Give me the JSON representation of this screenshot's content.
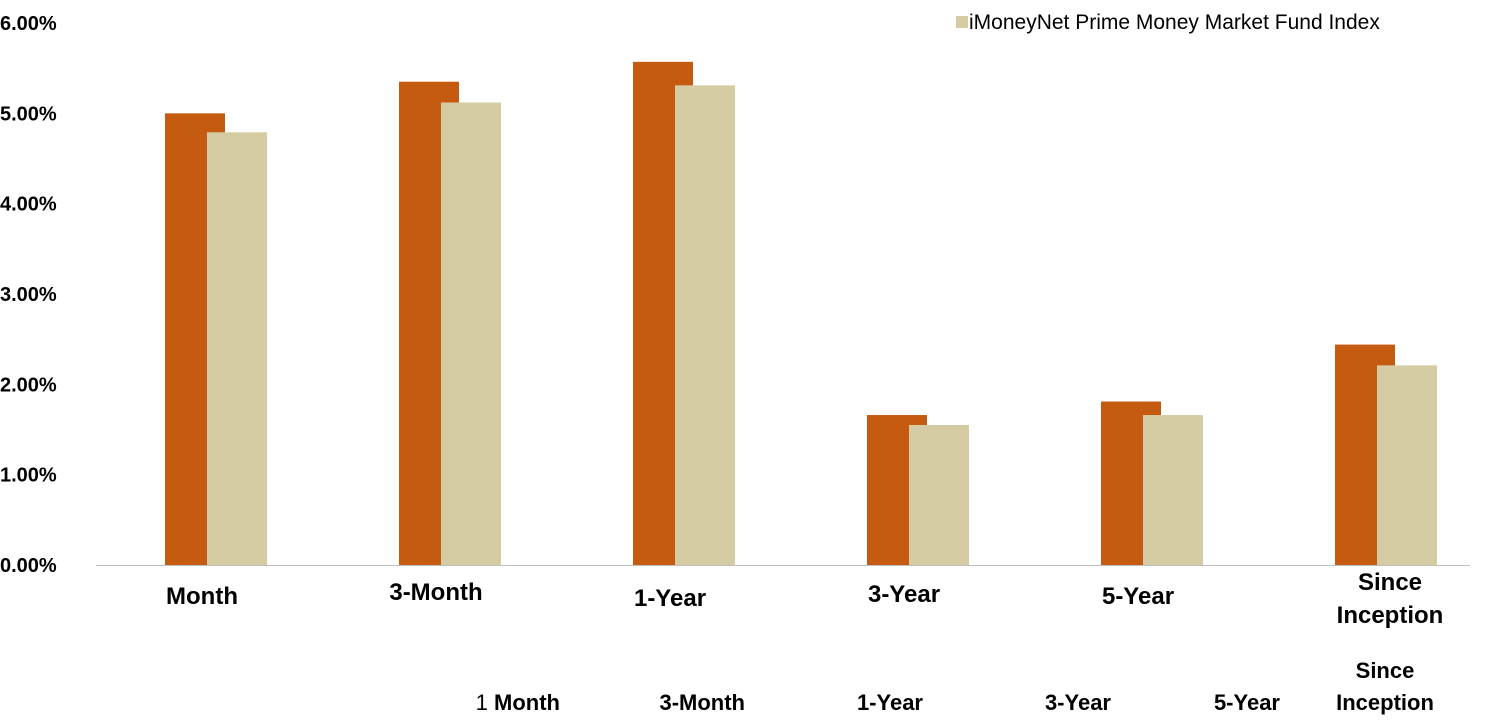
{
  "chart_data": {
    "type": "bar",
    "title": "",
    "xlabel": "",
    "ylabel": "",
    "ylim": [
      0,
      6
    ],
    "y_ticks": [
      "0.00%",
      "1.00%",
      "2.00%",
      "3.00%",
      "4.00%",
      "5.00%",
      "6.00%"
    ],
    "y_tick_values": [
      0,
      1,
      2,
      3,
      4,
      5,
      6
    ],
    "categories": [
      [
        "Month"
      ],
      [
        "3-Month"
      ],
      [
        "1-Year"
      ],
      [
        "3-Year"
      ],
      [
        "5-Year"
      ],
      [
        "Since",
        "Inception"
      ]
    ],
    "series": [
      {
        "name": "",
        "color": "#c55a11",
        "values": [
          5.0,
          5.35,
          5.57,
          1.66,
          1.81,
          2.44
        ]
      },
      {
        "name": "iMoneyNet Prime Money Market Fund Index",
        "color": "#d6cca3",
        "values": [
          4.79,
          5.12,
          5.31,
          1.55,
          1.66,
          2.21
        ]
      }
    ],
    "grid": false,
    "legend_position": "top-right"
  },
  "table_header": {
    "cells": [
      {
        "parts": [
          {
            "text": "1 ",
            "bold": false
          },
          {
            "text": "Month",
            "bold": true
          }
        ]
      },
      {
        "parts": [
          {
            "text": "3-Month",
            "bold": true
          }
        ]
      },
      {
        "parts": [
          {
            "text": "1-Year",
            "bold": true
          }
        ]
      },
      {
        "parts": [
          {
            "text": "3-Year",
            "bold": true
          }
        ]
      },
      {
        "parts": [
          {
            "text": "5-Year",
            "bold": true
          }
        ]
      },
      {
        "parts": [
          {
            "text": "Since",
            "bold": true
          }
        ],
        "second_line": "Inception"
      }
    ]
  }
}
